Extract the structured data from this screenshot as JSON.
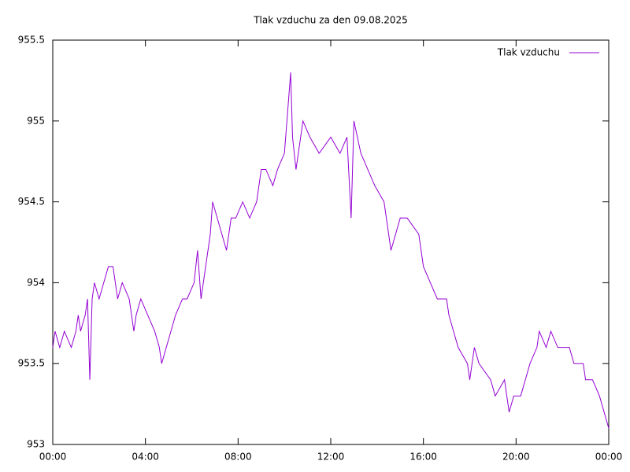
{
  "chart_data": {
    "type": "line",
    "title": "Tlak vzduchu za den 09.08.2025",
    "x": [
      0,
      0.1,
      0.3,
      0.5,
      0.8,
      1.0,
      1.1,
      1.2,
      1.4,
      1.5,
      1.6,
      1.7,
      1.8,
      2.0,
      2.2,
      2.4,
      2.6,
      2.8,
      3.0,
      3.3,
      3.5,
      3.6,
      3.8,
      4.1,
      4.4,
      4.6,
      4.7,
      4.9,
      5.1,
      5.3,
      5.6,
      5.8,
      6.1,
      6.25,
      6.4,
      6.6,
      6.8,
      6.9,
      7.1,
      7.3,
      7.5,
      7.7,
      7.9,
      8.2,
      8.5,
      8.8,
      9.0,
      9.2,
      9.5,
      9.7,
      10.0,
      10.27,
      10.35,
      10.5,
      10.8,
      11.1,
      11.5,
      12.0,
      12.4,
      12.7,
      12.88,
      13.0,
      13.3,
      13.6,
      13.9,
      14.3,
      14.6,
      15.0,
      15.3,
      15.8,
      16.0,
      16.3,
      16.6,
      17.0,
      17.1,
      17.3,
      17.5,
      17.9,
      18.0,
      18.2,
      18.4,
      18.9,
      19.1,
      19.5,
      19.7,
      19.9,
      20.2,
      20.4,
      20.6,
      20.9,
      21.0,
      21.3,
      21.5,
      21.8,
      22.3,
      22.5,
      22.9,
      23.0,
      23.3,
      23.6,
      23.8,
      24.0
    ],
    "series": [
      {
        "name": "Tlak vzduchu",
        "color": "#9400d3",
        "values": [
          953.6,
          953.7,
          953.6,
          953.7,
          953.6,
          953.7,
          953.8,
          953.7,
          953.8,
          953.9,
          953.4,
          953.9,
          954.0,
          953.9,
          954.0,
          954.1,
          954.1,
          953.9,
          954.0,
          953.9,
          953.7,
          953.8,
          953.9,
          953.8,
          953.7,
          953.6,
          953.5,
          953.6,
          953.7,
          953.8,
          953.9,
          953.9,
          954.0,
          954.2,
          953.9,
          954.1,
          954.3,
          954.5,
          954.4,
          954.3,
          954.2,
          954.4,
          954.4,
          954.5,
          954.4,
          954.5,
          954.7,
          954.7,
          954.6,
          954.7,
          954.8,
          955.3,
          954.9,
          954.7,
          955.0,
          954.9,
          954.8,
          954.9,
          954.8,
          954.9,
          954.4,
          955.0,
          954.8,
          954.7,
          954.6,
          954.5,
          954.2,
          954.4,
          954.4,
          954.3,
          954.1,
          954.0,
          953.9,
          953.9,
          953.8,
          953.7,
          953.6,
          953.5,
          953.4,
          953.6,
          953.5,
          953.4,
          953.3,
          953.4,
          953.2,
          953.3,
          953.3,
          953.4,
          953.5,
          953.6,
          953.7,
          953.6,
          953.7,
          953.6,
          953.6,
          953.5,
          953.5,
          953.4,
          953.4,
          953.3,
          953.2,
          953.1
        ]
      }
    ],
    "xlim": [
      0,
      24
    ],
    "xticks": [
      {
        "value": 0,
        "label": "00:00"
      },
      {
        "value": 4,
        "label": "04:00"
      },
      {
        "value": 8,
        "label": "08:00"
      },
      {
        "value": 12,
        "label": "12:00"
      },
      {
        "value": 16,
        "label": "16:00"
      },
      {
        "value": 20,
        "label": "20:00"
      },
      {
        "value": 24,
        "label": "00:00"
      }
    ],
    "ylim": [
      953,
      955.5
    ],
    "yticks": [
      953,
      953.5,
      954,
      954.5,
      955,
      955.5
    ],
    "grid": false,
    "legend": "top-right"
  }
}
